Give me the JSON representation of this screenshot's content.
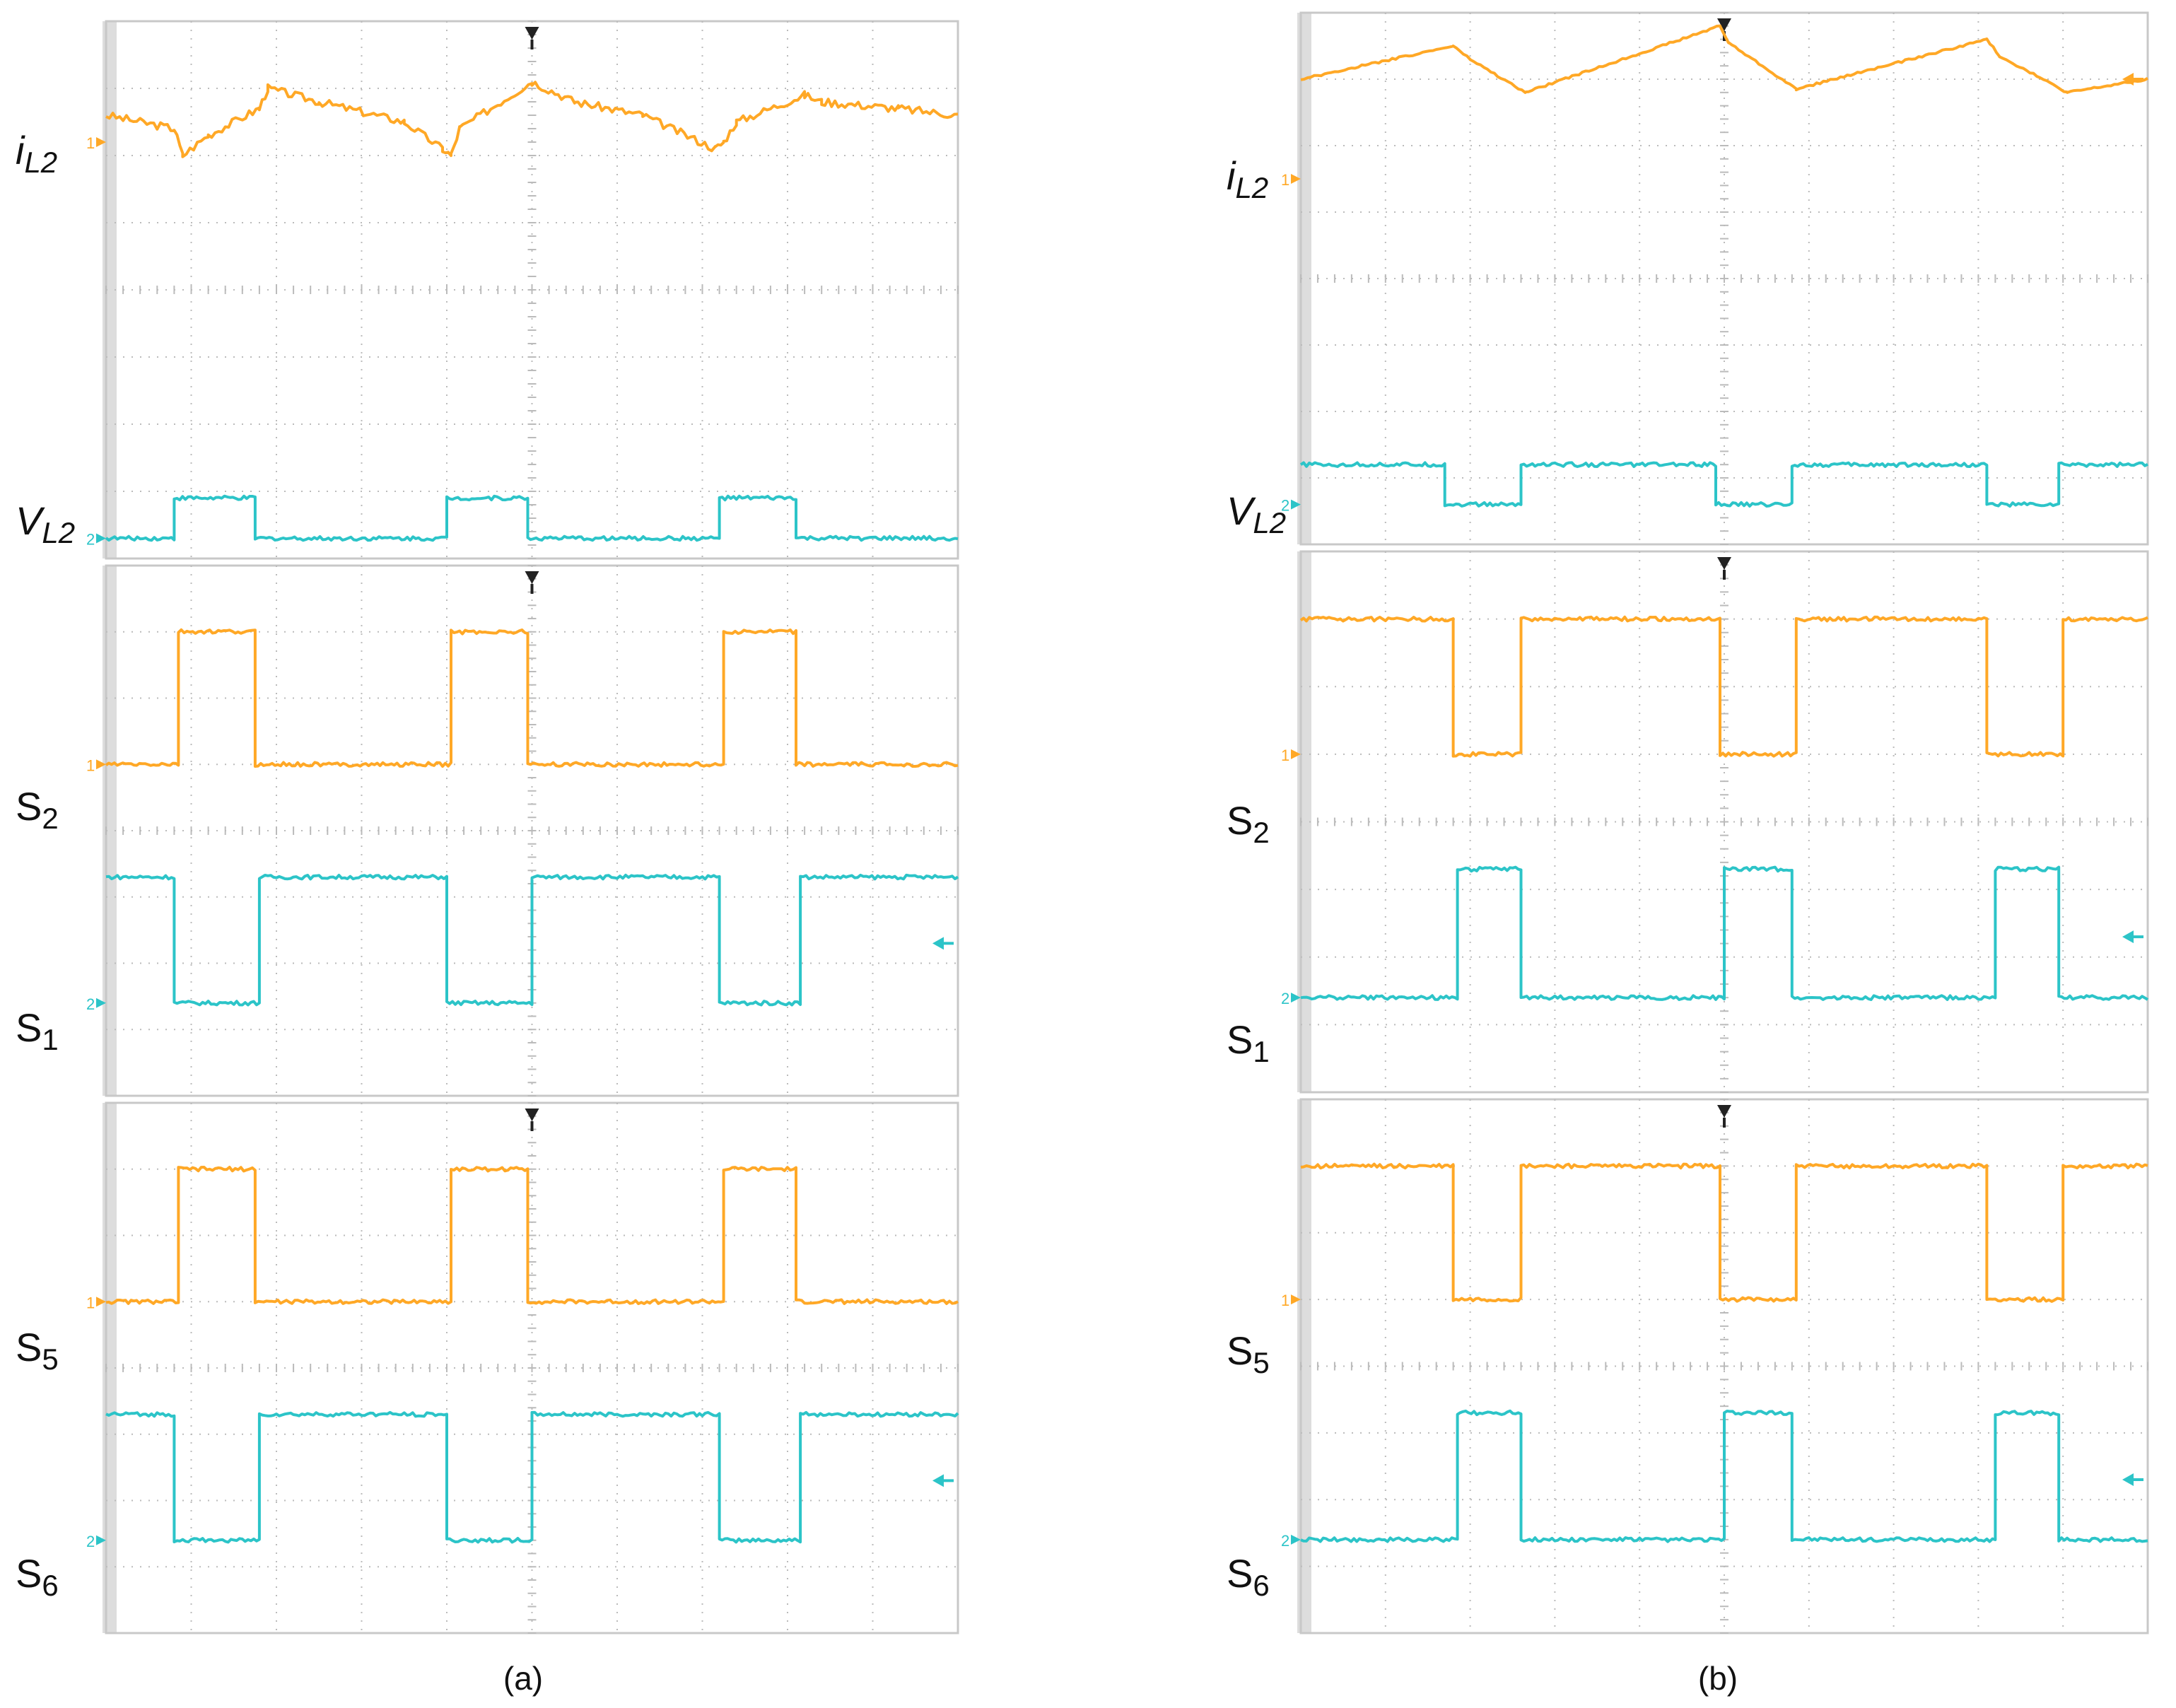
{
  "colors": {
    "ch1": "#FFA826",
    "ch2": "#2CC4C8",
    "grid": "#BBBBBB",
    "frame": "#C8C8C8",
    "bezel": "#DDDDDD",
    "marker": "#222222"
  },
  "chart_data": [
    {
      "type": "line",
      "title": "",
      "caption": "(a)",
      "xlim": [
        0,
        10
      ],
      "ylim": [
        0,
        8
      ],
      "screens": [
        {
          "name": "screen-a1",
          "traces": [
            {
              "name": "iL2",
              "label": {
                "base": "i",
                "sub": "L2"
              },
              "channel": 1,
              "style": "ripple",
              "points": [
                [
                  0,
                  6.6
                ],
                [
                  0.8,
                  6.4
                ],
                [
                  0.9,
                  6.0
                ],
                [
                  1.2,
                  6.3
                ],
                [
                  1.8,
                  6.7
                ],
                [
                  1.9,
                  7.0
                ],
                [
                  2.5,
                  6.8
                ],
                [
                  3.5,
                  6.5
                ],
                [
                  3.95,
                  6.1
                ],
                [
                  4.05,
                  6.0
                ],
                [
                  4.15,
                  6.4
                ],
                [
                  5.0,
                  7.1
                ],
                [
                  5.5,
                  6.8
                ],
                [
                  6.3,
                  6.6
                ],
                [
                  7.15,
                  6.1
                ],
                [
                  7.25,
                  6.2
                ],
                [
                  7.4,
                  6.5
                ],
                [
                  8.2,
                  6.9
                ],
                [
                  8.4,
                  6.8
                ],
                [
                  9.3,
                  6.7
                ],
                [
                  10,
                  6.6
                ]
              ],
              "ground": 6.2
            },
            {
              "name": "VL2",
              "label": {
                "base": "V",
                "sub": "L2"
              },
              "channel": 2,
              "style": "square",
              "low": 0.3,
              "high": 0.9,
              "high_intervals": [
                [
                  0.8,
                  1.75
                ],
                [
                  4.0,
                  4.95
                ],
                [
                  7.2,
                  8.1
                ]
              ],
              "ground": 0.3
            }
          ]
        },
        {
          "name": "screen-a2",
          "traces": [
            {
              "name": "S2",
              "label": {
                "base": "S",
                "sub": "2"
              },
              "channel": 1,
              "style": "square",
              "low": 5.0,
              "high": 7.0,
              "high_intervals": [
                [
                  0.85,
                  1.75
                ],
                [
                  4.05,
                  4.95
                ],
                [
                  7.25,
                  8.1
                ]
              ],
              "ground": 5.0
            },
            {
              "name": "S1",
              "label": {
                "base": "S",
                "sub": "1"
              },
              "channel": 2,
              "style": "square",
              "low": 1.4,
              "high": 3.3,
              "high_intervals": [
                [
                  0,
                  0.8
                ],
                [
                  1.8,
                  4.0
                ],
                [
                  5.0,
                  7.2
                ],
                [
                  8.15,
                  10
                ]
              ],
              "ground": 1.4
            }
          ]
        },
        {
          "name": "screen-a3",
          "traces": [
            {
              "name": "S5",
              "label": {
                "base": "S",
                "sub": "5"
              },
              "channel": 1,
              "style": "square",
              "low": 5.0,
              "high": 7.0,
              "high_intervals": [
                [
                  0.85,
                  1.75
                ],
                [
                  4.05,
                  4.95
                ],
                [
                  7.25,
                  8.1
                ]
              ],
              "ground": 5.0
            },
            {
              "name": "S6",
              "label": {
                "base": "S",
                "sub": "6"
              },
              "channel": 2,
              "style": "square",
              "low": 1.4,
              "high": 3.3,
              "high_intervals": [
                [
                  0,
                  0.8
                ],
                [
                  1.8,
                  4.0
                ],
                [
                  5.0,
                  7.2
                ],
                [
                  8.15,
                  10
                ]
              ],
              "ground": 1.4
            }
          ]
        }
      ]
    },
    {
      "type": "line",
      "title": "",
      "caption": "(b)",
      "xlim": [
        0,
        10
      ],
      "ylim": [
        0,
        8
      ],
      "screens": [
        {
          "name": "screen-b1",
          "traces": [
            {
              "name": "iL2",
              "label": {
                "base": "i",
                "sub": "L2"
              },
              "channel": 1,
              "style": "ripple",
              "points": [
                [
                  0,
                  7.0
                ],
                [
                  1.8,
                  7.5
                ],
                [
                  2.0,
                  7.3
                ],
                [
                  2.65,
                  6.8
                ],
                [
                  4.95,
                  7.8
                ],
                [
                  5.05,
                  7.55
                ],
                [
                  5.85,
                  6.85
                ],
                [
                  8.1,
                  7.6
                ],
                [
                  8.25,
                  7.35
                ],
                [
                  9.05,
                  6.8
                ],
                [
                  10,
                  7.0
                ]
              ],
              "ground": 5.5
            },
            {
              "name": "VL2",
              "label": {
                "base": "V",
                "sub": "L2"
              },
              "channel": 2,
              "style": "square",
              "low": 0.6,
              "high": 1.2,
              "high_intervals": [
                [
                  0,
                  1.7
                ],
                [
                  2.6,
                  4.9
                ],
                [
                  5.8,
                  8.1
                ],
                [
                  8.95,
                  10
                ]
              ],
              "ground": 0.6
            }
          ]
        },
        {
          "name": "screen-b2",
          "traces": [
            {
              "name": "S2",
              "label": {
                "base": "S",
                "sub": "2"
              },
              "channel": 1,
              "style": "square",
              "low": 5.0,
              "high": 7.0,
              "high_intervals": [
                [
                  0,
                  1.8
                ],
                [
                  2.6,
                  4.95
                ],
                [
                  5.85,
                  8.1
                ],
                [
                  9.0,
                  10
                ]
              ],
              "ground": 5.0
            },
            {
              "name": "S1",
              "label": {
                "base": "S",
                "sub": "1"
              },
              "channel": 2,
              "style": "square",
              "low": 1.4,
              "high": 3.3,
              "high_intervals": [
                [
                  1.85,
                  2.6
                ],
                [
                  5.0,
                  5.8
                ],
                [
                  8.2,
                  8.95
                ]
              ],
              "ground": 1.4
            }
          ]
        },
        {
          "name": "screen-b3",
          "traces": [
            {
              "name": "S5",
              "label": {
                "base": "S",
                "sub": "5"
              },
              "channel": 1,
              "style": "square",
              "low": 5.0,
              "high": 7.0,
              "high_intervals": [
                [
                  0,
                  1.8
                ],
                [
                  2.6,
                  4.95
                ],
                [
                  5.85,
                  8.1
                ],
                [
                  9.0,
                  10
                ]
              ],
              "ground": 5.0
            },
            {
              "name": "S6",
              "label": {
                "base": "S",
                "sub": "6"
              },
              "channel": 2,
              "style": "square",
              "low": 1.4,
              "high": 3.3,
              "high_intervals": [
                [
                  1.85,
                  2.6
                ],
                [
                  5.0,
                  5.8
                ],
                [
                  8.2,
                  8.95
                ]
              ],
              "ground": 1.4
            }
          ]
        }
      ]
    }
  ]
}
